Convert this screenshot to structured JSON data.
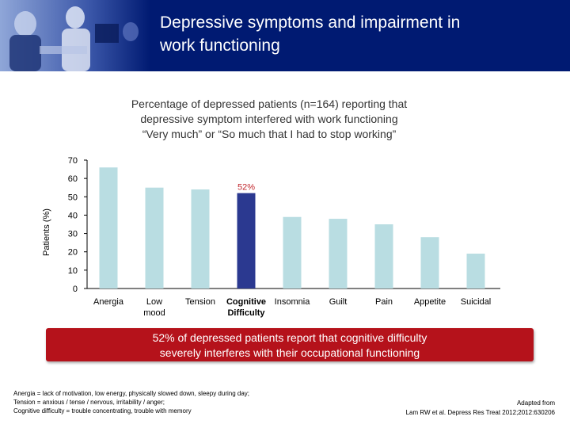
{
  "header": {
    "title_line1": "Depressive symptoms and impairment in",
    "title_line2": "work functioning",
    "bg_color": "#001a72"
  },
  "subtitle": {
    "line1": "Percentage of depressed patients (n=164) reporting that",
    "line2": "depressive symptom interfered with work functioning",
    "line3": "“Very much” or “So much that I had to stop working”"
  },
  "chart_data": {
    "type": "bar",
    "title": "",
    "ylabel": "Patients (%)",
    "xlabel": "",
    "ylim": [
      0,
      70
    ],
    "yticks": [
      0,
      10,
      20,
      30,
      40,
      50,
      60,
      70
    ],
    "categories": [
      [
        "Anergia"
      ],
      [
        "Low",
        "mood"
      ],
      [
        "Tension"
      ],
      [
        "Cognitive",
        "Difficulty"
      ],
      [
        "Insomnia"
      ],
      [
        "Guilt"
      ],
      [
        "Pain"
      ],
      [
        "Appetite"
      ],
      [
        "Suicidal"
      ]
    ],
    "values": [
      66,
      55,
      54,
      52,
      39,
      38,
      35,
      28,
      19
    ],
    "highlight_index": 3,
    "highlight_label": "52%",
    "bar_color": "#b9dde2",
    "highlight_color": "#2b3990",
    "highlight_label_color": "#c1272d"
  },
  "banner": {
    "line1": "52% of depressed patients report that cognitive difficulty",
    "line2": "severely interferes with their occupational functioning",
    "color": "#b5121b"
  },
  "footnote": {
    "line1": "Anergia = lack of motivation, low energy, physically slowed down, sleepy during day;",
    "line2": "Tension = anxious / tense / nervous, irritability / anger;",
    "line3": "Cognitive difficulty = trouble concentrating, trouble with memory"
  },
  "citation": {
    "line1": "Adapted from",
    "line2": "Lam RW et al. Depress Res Treat 2012;2012:630206"
  }
}
